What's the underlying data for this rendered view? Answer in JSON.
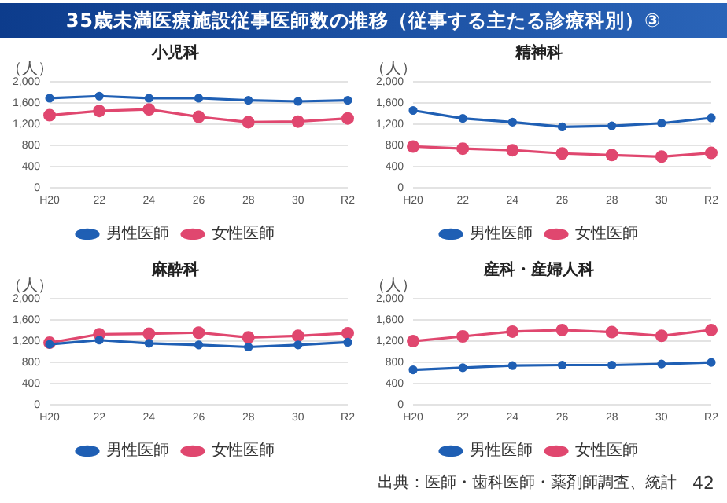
{
  "chart_data": [
    {
      "type": "other",
      "title": "35歳未満医療施設従事医師数の推移（従事する主たる診療科別）③",
      "annotations": [
        "出典：医師・歯科医師・薬剤師調査、統計",
        "42"
      ]
    },
    {
      "type": "line",
      "title": "小児科",
      "ylabel": "（人）",
      "categories": [
        "H20",
        "22",
        "24",
        "26",
        "28",
        "30",
        "R2"
      ],
      "ylim": [
        0,
        2000
      ],
      "yticks": [
        {
          "value": 0,
          "label": "0"
        },
        {
          "value": 400,
          "label": "400"
        },
        {
          "value": 800,
          "label": "800"
        },
        {
          "value": 1200,
          "label": "1,200"
        },
        {
          "value": 1600,
          "label": "1,600"
        },
        {
          "value": 2000,
          "label": "2,000"
        }
      ],
      "grid": "y",
      "legend": "bottom",
      "marker": "circle",
      "series": [
        {
          "name": "男性医師",
          "color": "#1f5fb4",
          "values": [
            1690,
            1730,
            1690,
            1690,
            1650,
            1630,
            1650
          ]
        },
        {
          "name": "女性医師",
          "color": "#e0476f",
          "values": [
            1370,
            1450,
            1480,
            1340,
            1240,
            1250,
            1310
          ]
        }
      ]
    },
    {
      "type": "line",
      "title": "精神科",
      "ylabel": "（人）",
      "categories": [
        "H20",
        "22",
        "24",
        "26",
        "28",
        "30",
        "R2"
      ],
      "ylim": [
        0,
        2000
      ],
      "yticks": [
        {
          "value": 0,
          "label": "0"
        },
        {
          "value": 400,
          "label": "400"
        },
        {
          "value": 800,
          "label": "800"
        },
        {
          "value": 1200,
          "label": "1,200"
        },
        {
          "value": 1600,
          "label": "1,600"
        },
        {
          "value": 2000,
          "label": "2,000"
        }
      ],
      "grid": "y",
      "legend": "bottom",
      "marker": "circle",
      "series": [
        {
          "name": "男性医師",
          "color": "#1f5fb4",
          "values": [
            1460,
            1310,
            1240,
            1150,
            1170,
            1220,
            1320
          ]
        },
        {
          "name": "女性医師",
          "color": "#e0476f",
          "values": [
            780,
            740,
            710,
            650,
            620,
            590,
            660
          ]
        }
      ]
    },
    {
      "type": "line",
      "title": "麻酔科",
      "ylabel": "（人）",
      "categories": [
        "H20",
        "22",
        "24",
        "26",
        "28",
        "30",
        "R2"
      ],
      "ylim": [
        0,
        2000
      ],
      "yticks": [
        {
          "value": 0,
          "label": "0"
        },
        {
          "value": 400,
          "label": "400"
        },
        {
          "value": 800,
          "label": "800"
        },
        {
          "value": 1200,
          "label": "1,200"
        },
        {
          "value": 1600,
          "label": "1,600"
        },
        {
          "value": 2000,
          "label": "2,000"
        }
      ],
      "grid": "y",
      "legend": "bottom",
      "marker": "circle",
      "series": [
        {
          "name": "男性医師",
          "color": "#1f5fb4",
          "values": [
            1140,
            1220,
            1160,
            1130,
            1090,
            1130,
            1180
          ]
        },
        {
          "name": "女性医師",
          "color": "#e0476f",
          "values": [
            1170,
            1330,
            1340,
            1360,
            1270,
            1300,
            1350
          ]
        }
      ]
    },
    {
      "type": "line",
      "title": "産科・産婦人科",
      "ylabel": "（人）",
      "categories": [
        "H20",
        "22",
        "24",
        "26",
        "28",
        "30",
        "R2"
      ],
      "ylim": [
        0,
        2000
      ],
      "yticks": [
        {
          "value": 0,
          "label": "0"
        },
        {
          "value": 400,
          "label": "400"
        },
        {
          "value": 800,
          "label": "800"
        },
        {
          "value": 1200,
          "label": "1,200"
        },
        {
          "value": 1600,
          "label": "1,600"
        },
        {
          "value": 2000,
          "label": "2,000"
        }
      ],
      "grid": "y",
      "legend": "bottom",
      "marker": "circle",
      "series": [
        {
          "name": "男性医師",
          "color": "#1f5fb4",
          "values": [
            660,
            700,
            740,
            750,
            750,
            770,
            800
          ]
        },
        {
          "name": "女性医師",
          "color": "#e0476f",
          "values": [
            1200,
            1290,
            1380,
            1410,
            1370,
            1300,
            1410
          ]
        }
      ]
    }
  ]
}
